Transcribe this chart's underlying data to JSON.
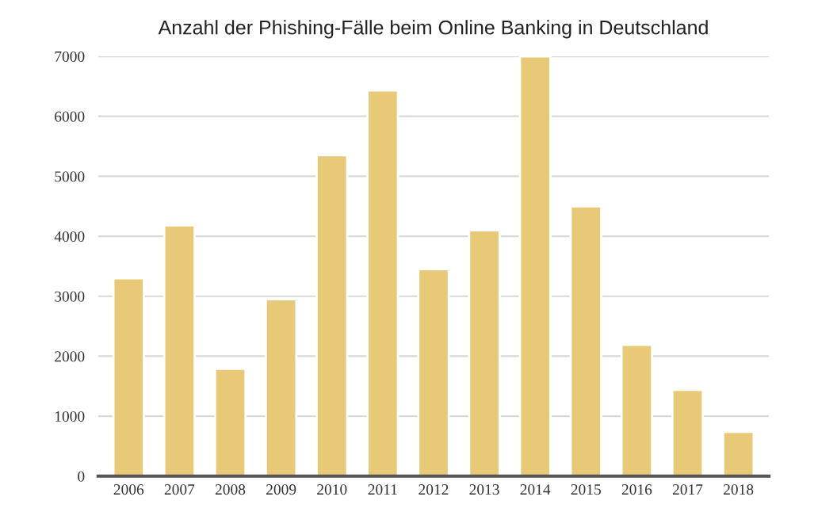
{
  "chart_data": {
    "type": "bar",
    "title": "Anzahl der Phishing-Fälle beim Online Banking in Deutschland",
    "categories": [
      "2006",
      "2007",
      "2008",
      "2009",
      "2010",
      "2011",
      "2012",
      "2013",
      "2014",
      "2015",
      "2016",
      "2017",
      "2018"
    ],
    "values": [
      3300,
      4180,
      1790,
      2950,
      5350,
      6430,
      3450,
      4100,
      7000,
      4500,
      2190,
      1440,
      740
    ],
    "color": "#e8c977",
    "ylim": [
      0,
      7000
    ],
    "yticks": [
      0,
      1000,
      2000,
      3000,
      4000,
      5000,
      6000,
      7000
    ],
    "grid": "y",
    "legend": false
  }
}
